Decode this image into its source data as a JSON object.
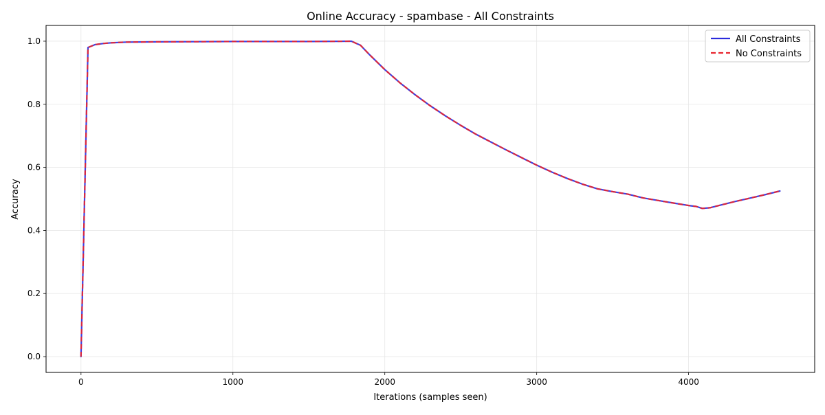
{
  "chart_data": {
    "type": "line",
    "title": "Online Accuracy - spambase - All Constraints",
    "xlabel": "Iterations (samples seen)",
    "ylabel": "Accuracy",
    "xlim": [
      -230,
      4830
    ],
    "ylim": [
      -0.05,
      1.05
    ],
    "xticks": [
      0,
      1000,
      2000,
      3000,
      4000
    ],
    "yticks": [
      0.0,
      0.2,
      0.4,
      0.6,
      0.8,
      1.0
    ],
    "xtick_labels": [
      "0",
      "1000",
      "2000",
      "3000",
      "4000"
    ],
    "ytick_labels": [
      "0.0",
      "0.2",
      "0.4",
      "0.6",
      "0.8",
      "1.0"
    ],
    "grid": true,
    "legend_position": "top-right",
    "series": [
      {
        "name": "All Constraints",
        "color": "#2b2bdc",
        "style": "solid",
        "x": [
          0,
          46,
          92,
          150,
          200,
          300,
          500,
          1000,
          1500,
          1780,
          1840,
          1900,
          2000,
          2100,
          2200,
          2300,
          2400,
          2500,
          2600,
          2700,
          2800,
          2900,
          3000,
          3100,
          3200,
          3300,
          3400,
          3500,
          3600,
          3700,
          3800,
          3900,
          4000,
          4050,
          4090,
          4140,
          4200,
          4300,
          4400,
          4500,
          4601
        ],
        "values": [
          0.0,
          0.98,
          0.989,
          0.993,
          0.995,
          0.997,
          0.998,
          0.999,
          0.999,
          1.0,
          0.987,
          0.957,
          0.91,
          0.868,
          0.83,
          0.795,
          0.763,
          0.733,
          0.705,
          0.68,
          0.655,
          0.631,
          0.607,
          0.585,
          0.565,
          0.547,
          0.532,
          0.523,
          0.515,
          0.503,
          0.495,
          0.487,
          0.479,
          0.476,
          0.47,
          0.472,
          0.479,
          0.491,
          0.502,
          0.513,
          0.525
        ]
      },
      {
        "name": "No Constraints",
        "color": "#e8252f",
        "style": "dashed",
        "x": [
          0,
          46,
          92,
          150,
          200,
          300,
          500,
          1000,
          1500,
          1780,
          1840,
          1900,
          2000,
          2100,
          2200,
          2300,
          2400,
          2500,
          2600,
          2700,
          2800,
          2900,
          3000,
          3100,
          3200,
          3300,
          3400,
          3500,
          3600,
          3700,
          3800,
          3900,
          4000,
          4050,
          4090,
          4140,
          4200,
          4300,
          4400,
          4500,
          4601
        ],
        "values": [
          0.0,
          0.98,
          0.989,
          0.993,
          0.995,
          0.997,
          0.998,
          0.999,
          0.999,
          1.0,
          0.987,
          0.957,
          0.91,
          0.868,
          0.83,
          0.795,
          0.763,
          0.733,
          0.705,
          0.68,
          0.655,
          0.631,
          0.607,
          0.585,
          0.565,
          0.547,
          0.532,
          0.523,
          0.515,
          0.503,
          0.495,
          0.487,
          0.479,
          0.476,
          0.47,
          0.472,
          0.479,
          0.491,
          0.502,
          0.513,
          0.525
        ]
      }
    ]
  }
}
